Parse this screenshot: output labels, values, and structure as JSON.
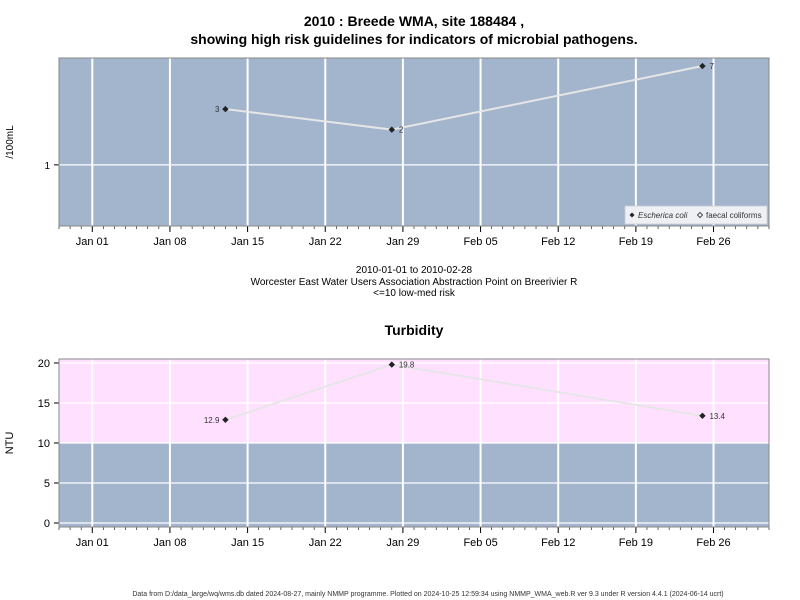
{
  "figure": {
    "title_line1": "2010 : Breede WMA, site 188484 ,",
    "title_line2": "showing high risk guidelines for indicators of microbial pathogens.",
    "subtitle_line1": "2010-01-01 to 2010-02-28",
    "subtitle_line2": "Worcester East Water Users Association Abstraction Point on Breerivier R",
    "subtitle_line3": "<=10 low-med risk",
    "footer": "Data from D:/data_large/wq/wms.db dated 2024-08-27, mainly NMMP programme. Plotted on 2024-10-25 12:59:34 using NMMP_WMA_web.R ver 9.3 under R version 4.4.1 (2024-06-14 ucrt)"
  },
  "colors": {
    "panel_background": "#a2b5cd",
    "pink_band": "#ffe0ff",
    "grid": "#ffffff",
    "series_line": "#e6e6e6",
    "point": "#222222"
  },
  "x_ticks": [
    "Jan 01",
    "Jan 08",
    "Jan 15",
    "Jan 22",
    "Jan 29",
    "Feb 05",
    "Feb 12",
    "Feb 19",
    "Feb 26"
  ],
  "chart_data": [
    {
      "type": "line",
      "title": "",
      "ylabel": "/100mL",
      "xlabel": "",
      "x_axis": "date",
      "xlim": [
        "2009-12-29",
        "2010-03-03"
      ],
      "y_scale": "log",
      "y_ticks": [
        "1"
      ],
      "grid": true,
      "legend_position": "bottom-right",
      "legend": [
        "Escherica coli",
        "faecal coliforms"
      ],
      "series": [
        {
          "name": "Escherica coli",
          "x": [
            "2010-01-13",
            "2010-01-28",
            "2010-02-25"
          ],
          "values": [
            3,
            2,
            7
          ],
          "labels": [
            "3",
            "2",
            "7"
          ]
        }
      ]
    },
    {
      "type": "line",
      "title": "Turbidity",
      "ylabel": "NTU",
      "xlabel": "",
      "x_axis": "date",
      "xlim": [
        "2009-12-29",
        "2010-03-03"
      ],
      "ylim": [
        -0.5,
        20.5
      ],
      "y_ticks": [
        "0",
        "5",
        "10",
        "15",
        "20"
      ],
      "grid": true,
      "shaded_band": {
        "from": 10,
        "to": 20.5
      },
      "series": [
        {
          "x": [
            "2010-01-13",
            "2010-01-28",
            "2010-02-25"
          ],
          "values": [
            12.9,
            19.8,
            13.4
          ],
          "labels": [
            "12.9",
            "19.8",
            "13.4"
          ]
        }
      ]
    }
  ]
}
